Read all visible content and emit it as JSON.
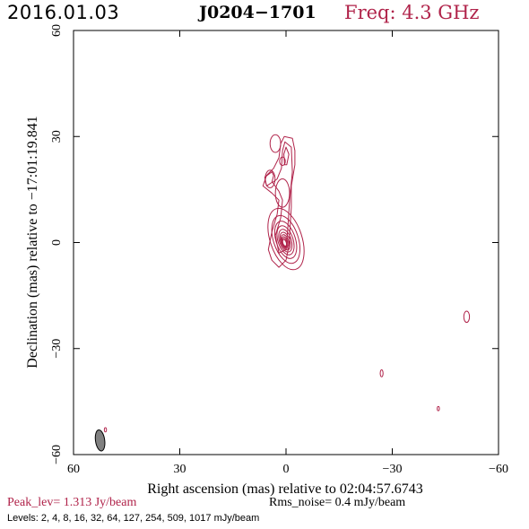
{
  "header": {
    "date": "2016.01.03",
    "source": "J0204−1701",
    "frequency": "Freq: 4.3 GHz"
  },
  "colors": {
    "contour": "#b0234a",
    "axes": "#000000",
    "beam_fill": "#808080"
  },
  "chart_data": {
    "type": "contour",
    "xlabel": "Right ascension (mas) relative to 02:04:57.6743",
    "ylabel": "Declination (mas) relative to −17:01:19.841",
    "xlim": [
      60,
      -60
    ],
    "ylim": [
      -60,
      60
    ],
    "x_ticks": [
      60,
      30,
      0,
      -30,
      -60
    ],
    "x_tick_labels": [
      "60",
      "30",
      "0",
      "−30",
      "−60"
    ],
    "y_ticks": [
      -60,
      -30,
      0,
      30,
      60
    ],
    "y_tick_labels": [
      "−60",
      "−30",
      "0",
      "30",
      "60"
    ],
    "contour_levels_mJy": [
      2,
      4,
      8,
      16,
      32,
      64,
      127,
      254,
      509,
      1017
    ],
    "core": {
      "x": 0,
      "y": 1,
      "max_semi_major": 9,
      "max_semi_minor": 4.5,
      "pa_deg": -18
    },
    "jet_components": [
      {
        "x": 3,
        "y": 28,
        "rx": 1.5,
        "ry": 2.5
      },
      {
        "x": 4.5,
        "y": 18,
        "rx": 1.4,
        "ry": 2.5
      },
      {
        "x": 1,
        "y": 14,
        "rx": 2.0,
        "ry": 4.0
      },
      {
        "x": 1,
        "y": 23,
        "rx": 0.8,
        "ry": 1.2
      }
    ],
    "isolated_features": [
      {
        "x": -51,
        "y": -21,
        "rx": 0.8,
        "ry": 1.6
      },
      {
        "x": -27,
        "y": -37,
        "rx": 0.4,
        "ry": 1.0
      },
      {
        "x": -43,
        "y": -47,
        "rx": 0.3,
        "ry": 0.6
      },
      {
        "x": 51,
        "y": -53,
        "rx": 0.3,
        "ry": 0.6
      }
    ],
    "beam": {
      "x": 52.5,
      "y": -56,
      "rx": 1.3,
      "ry": 3.0,
      "pa_deg": -8
    }
  },
  "footer": {
    "peak": "Peak_lev=  1.313 Jy/beam",
    "rms": "Rms_noise=  0.4 mJy/beam",
    "levels": "Levels:   2,    4,    8,   16,   32,   64,  127,  254,  509,  1017 mJy/beam"
  }
}
